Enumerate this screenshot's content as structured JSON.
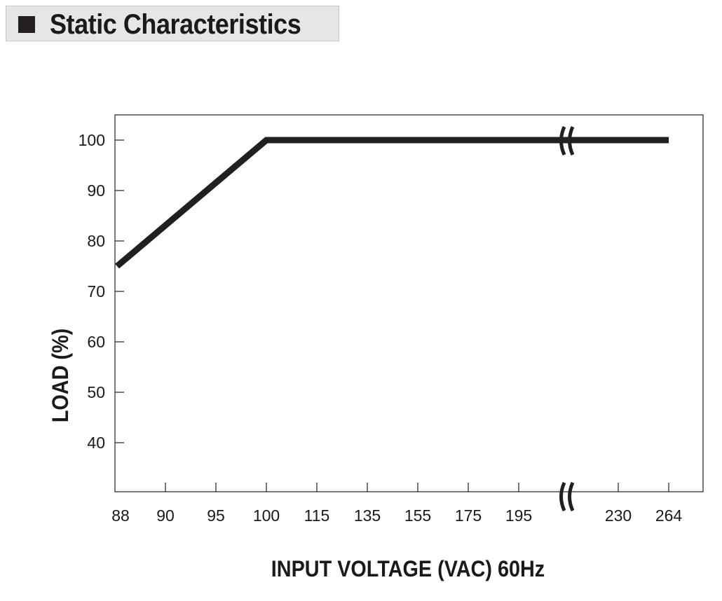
{
  "header": {
    "title": "Static Characteristics"
  },
  "chart_data": {
    "type": "line",
    "title": "Static Characteristics",
    "xlabel": "INPUT VOLTAGE (VAC) 60Hz",
    "ylabel": "LOAD (%)",
    "x_ticks": [
      "88",
      "90",
      "95",
      "100",
      "115",
      "135",
      "155",
      "175",
      "195",
      "230",
      "264"
    ],
    "y_ticks": [
      40,
      50,
      60,
      70,
      80,
      90,
      100
    ],
    "ylim": [
      30,
      105
    ],
    "axis_breaks": "between 195 and 230",
    "grid": false,
    "colors": {
      "line": "#231f20",
      "frame": "#231f20",
      "text": "#1a1a1a"
    },
    "series": [
      {
        "x": [
          "88",
          "100",
          "264"
        ],
        "values": [
          75,
          100,
          100
        ]
      }
    ]
  }
}
